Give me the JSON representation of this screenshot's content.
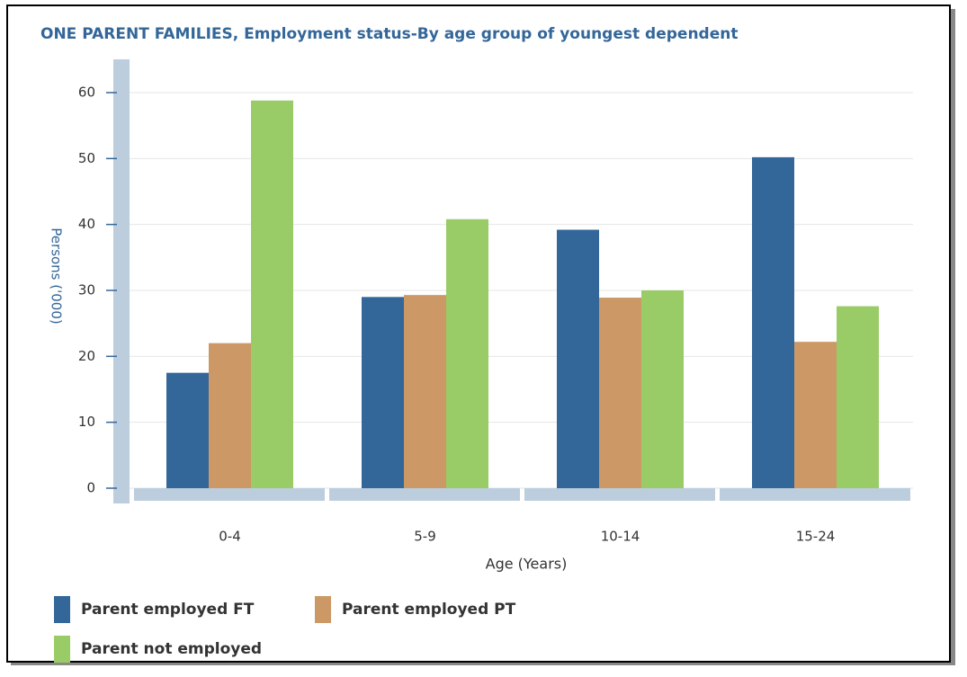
{
  "chart_data": {
    "type": "bar",
    "title": "ONE PARENT FAMILIES, Employment status-By age group of youngest dependent",
    "x_label": "Age (Years)",
    "y_label": "Persons ('000)",
    "categories": [
      "0-4",
      "5-9",
      "10-14",
      "15-24"
    ],
    "series": [
      {
        "name": "Parent employed FT",
        "color": "#336699",
        "values": [
          17.5,
          29,
          39.2,
          50.2
        ]
      },
      {
        "name": "Parent employed PT",
        "color": "#cc9966",
        "values": [
          22,
          29.3,
          28.9,
          22.2
        ]
      },
      {
        "name": "Parent not employed",
        "color": "#99cc66",
        "values": [
          58.8,
          40.8,
          30,
          27.6
        ]
      }
    ],
    "ylim": [
      0,
      65
    ],
    "yticks": [
      0,
      10,
      20,
      30,
      40,
      50,
      60
    ],
    "grid": true
  }
}
